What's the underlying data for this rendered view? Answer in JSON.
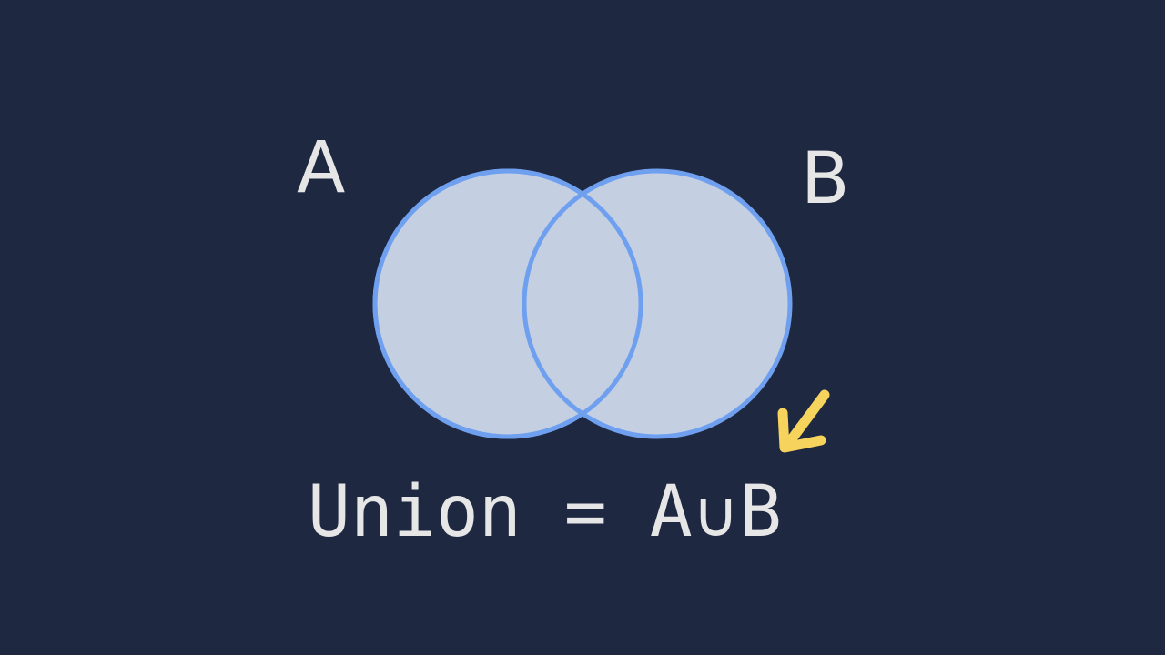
{
  "diagram": {
    "set_a": {
      "label": "A"
    },
    "set_b": {
      "label": "B"
    },
    "equation": {
      "lhs": "Union",
      "equals": "=",
      "rhs_a": "A",
      "operator": "∪",
      "rhs_b": "B"
    },
    "colors": {
      "background": "#1e2840",
      "circle_fill": "#c5cfe2",
      "circle_stroke": "#6fa0f0",
      "text": "#e6e6e6",
      "arrow": "#f6d35c"
    },
    "icons": [
      "arrow-down-left-icon"
    ]
  }
}
